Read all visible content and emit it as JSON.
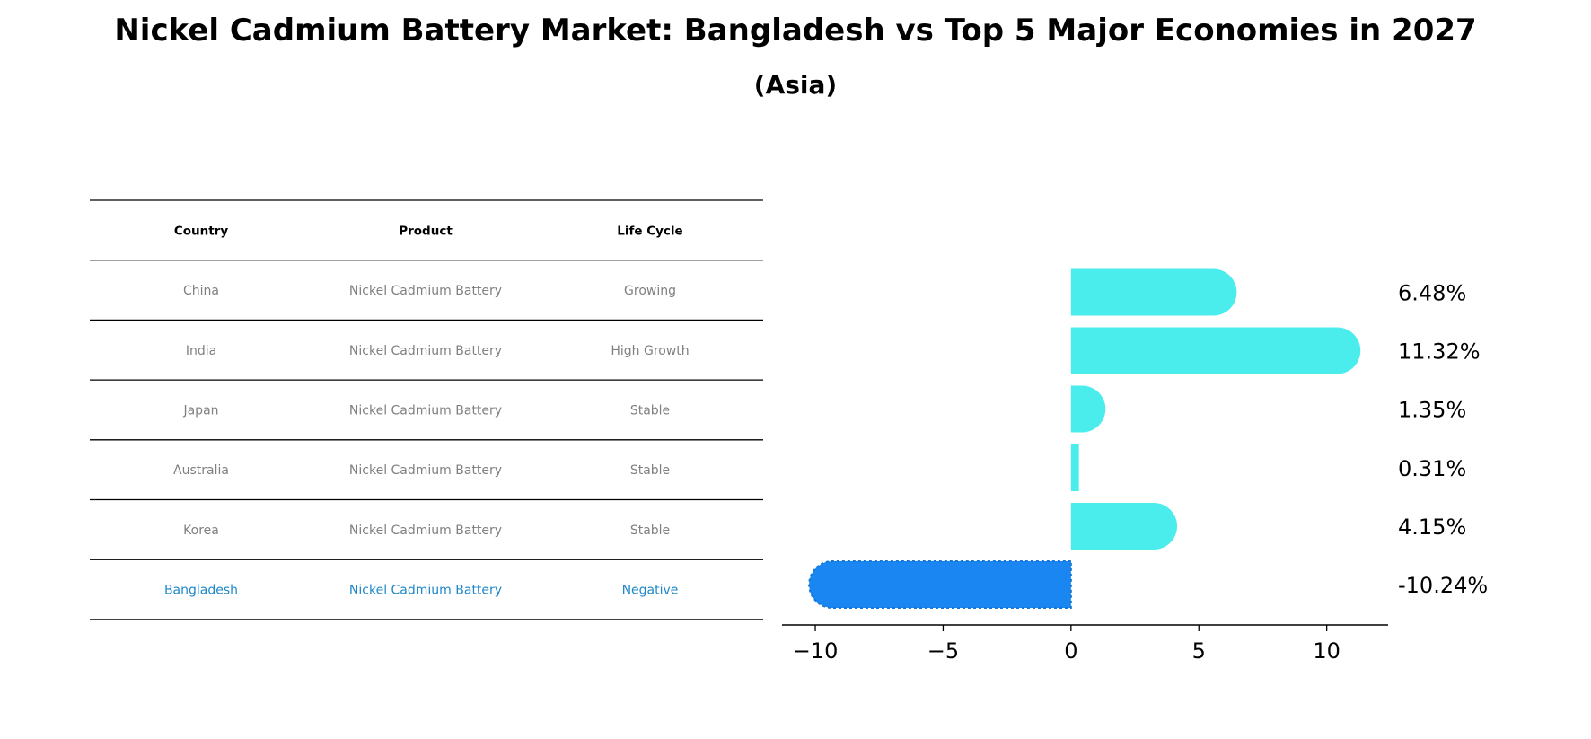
{
  "title": "Nickel Cadmium Battery Market: Bangladesh vs Top 5 Major Economies in 2027",
  "subtitle": "(Asia)",
  "colors": {
    "bar_default": "#4BECEC",
    "bar_highlight": "#1A86F2",
    "header_text": "#000000",
    "cell_text": "#808080",
    "highlight_text": "#1F88C9"
  },
  "table": {
    "headers": [
      "Country",
      "Product",
      "Life Cycle"
    ],
    "rows": [
      [
        "China",
        "Nickel Cadmium Battery",
        "Growing"
      ],
      [
        "India",
        "Nickel Cadmium Battery",
        "High Growth"
      ],
      [
        "Japan",
        "Nickel Cadmium Battery",
        "Stable"
      ],
      [
        "Australia",
        "Nickel Cadmium Battery",
        "Stable"
      ],
      [
        "Korea",
        "Nickel Cadmium Battery",
        "Stable"
      ],
      [
        "Bangladesh",
        "Nickel Cadmium Battery",
        "Negative"
      ]
    ],
    "highlight_row": 5
  },
  "chart_data": {
    "type": "bar",
    "orientation": "horizontal",
    "categories": [
      "China",
      "India",
      "Japan",
      "Australia",
      "Korea",
      "Bangladesh"
    ],
    "values": [
      6.48,
      11.32,
      1.35,
      0.31,
      4.15,
      -10.24
    ],
    "value_labels": [
      "6.48%",
      "11.32%",
      "1.35%",
      "0.31%",
      "4.15%",
      "-10.24%"
    ],
    "highlight_index": 5,
    "xlim": [
      -11.3,
      12.4
    ],
    "xticks": [
      -10,
      -5,
      0,
      5,
      10
    ],
    "xtick_labels": [
      "−10",
      "−5",
      "0",
      "5",
      "10"
    ],
    "xlabel": "",
    "ylabel": "",
    "grid": false
  }
}
